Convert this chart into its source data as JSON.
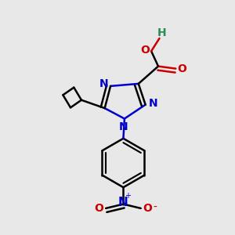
{
  "bg_color": "#e8e8e8",
  "bond_color": "#000000",
  "N_color": "#0000cc",
  "O_color": "#cc0000",
  "H_color": "#2e8b57",
  "C_color": "#000000",
  "line_width": 1.8,
  "font_size": 10,
  "fig_size": [
    3.0,
    3.0
  ],
  "dpi": 100,
  "xlim": [
    0,
    10
  ],
  "ylim": [
    0,
    10
  ]
}
